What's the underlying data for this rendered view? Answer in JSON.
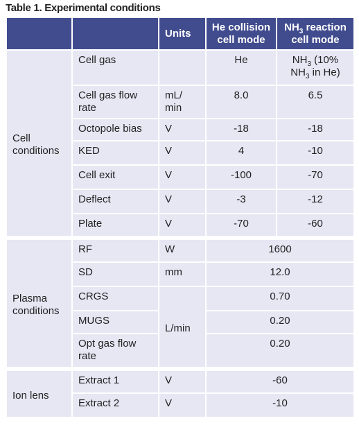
{
  "title": "Table 1. Experimental conditions",
  "table": {
    "header": [
      "Units",
      "He collision cell mode",
      [
        "NH",
        "3",
        " reaction cell mode"
      ]
    ],
    "sections": [
      {
        "group": "Cell conditions",
        "rows": [
          {
            "param": "Cell gas",
            "he": "He",
            "nh3": [
              "NH",
              "3",
              " (10% NH",
              "3",
              " in He)"
            ]
          },
          {
            "param": "Cell gas flow rate",
            "units": "mL/ min",
            "he": "8.0",
            "nh3": "6.5"
          },
          {
            "param": "Octopole bias",
            "units": "V",
            "he": "-18",
            "nh3": "-18"
          },
          {
            "param": "KED",
            "units": "V",
            "he": "4",
            "nh3": "-10"
          },
          {
            "param": "Cell exit",
            "units": "V",
            "he": "-100",
            "nh3": "-70"
          },
          {
            "param": "Deflect",
            "units": "V",
            "he": "-3",
            "nh3": "-12"
          },
          {
            "param": "Plate",
            "units": "V",
            "he": "-70",
            "nh3": "-60"
          }
        ]
      },
      {
        "group": "Plasma conditions",
        "rows": [
          {
            "param": "RF",
            "units": "W",
            "value": "1600"
          },
          {
            "param": "SD",
            "units": "mm",
            "value": "12.0"
          },
          {
            "param": "CRGS",
            "units": "L/min",
            "value": "0.70"
          },
          {
            "param": "MUGS",
            "value": "0.20"
          },
          {
            "param": "Opt gas flow rate",
            "value": "0.20"
          }
        ]
      },
      {
        "group": "Ion lens",
        "rows": [
          {
            "param": "Extract 1",
            "units": "V",
            "value": "-60"
          },
          {
            "param": "Extract 2",
            "units": "V",
            "value": "-10"
          }
        ]
      }
    ]
  }
}
